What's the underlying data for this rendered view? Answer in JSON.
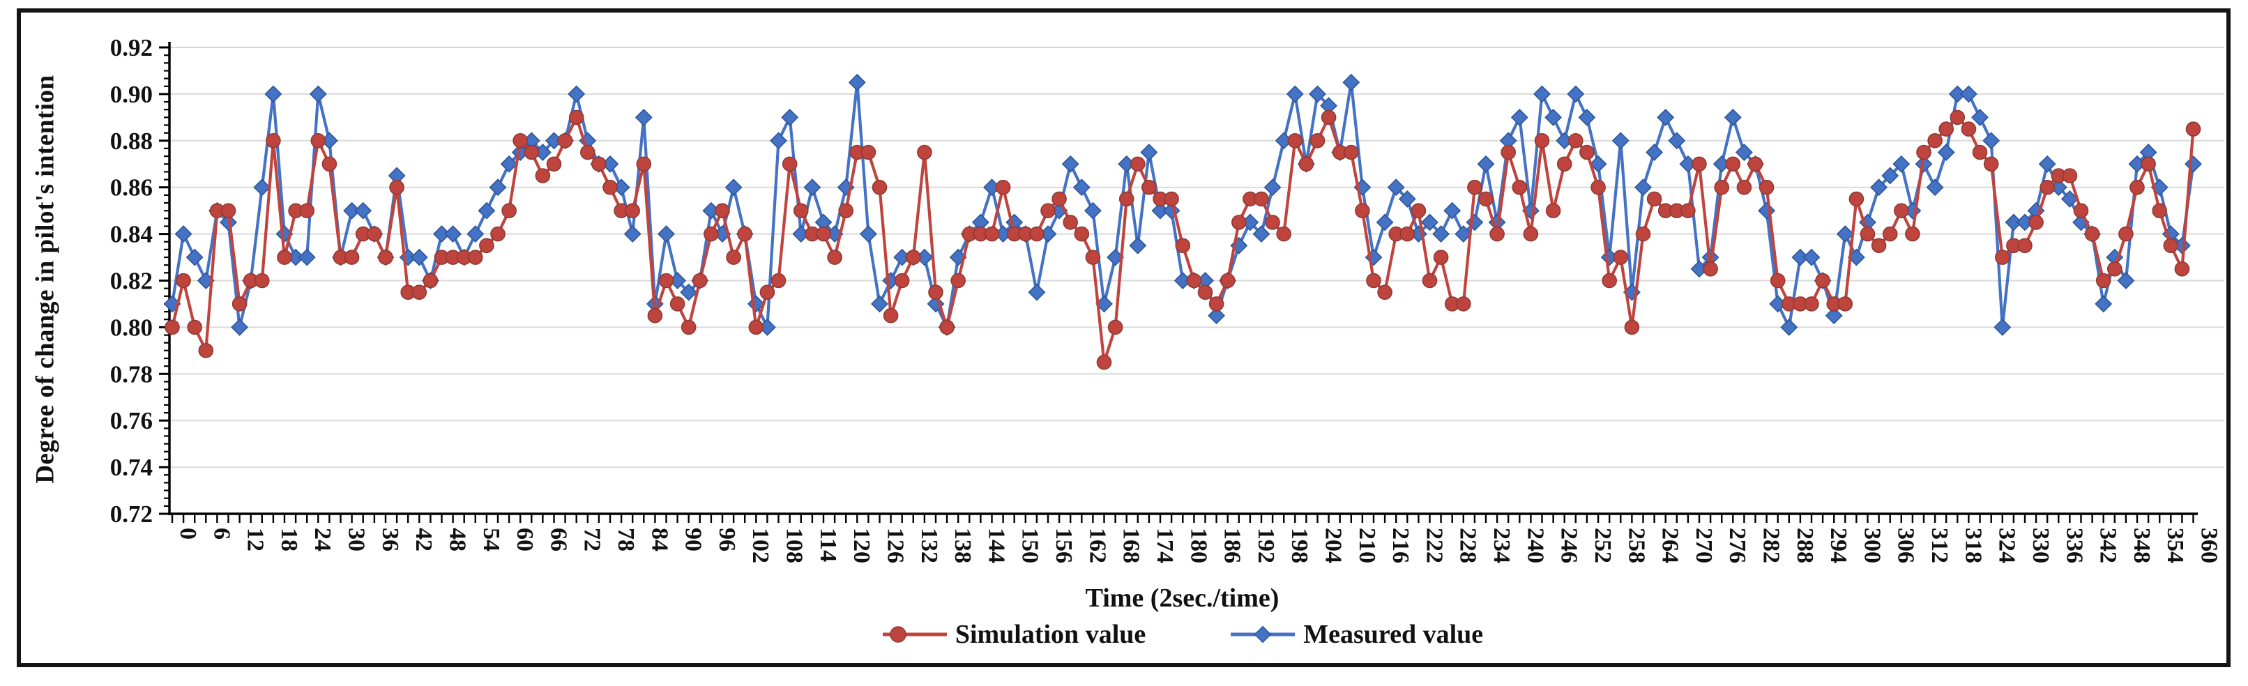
{
  "frame": {
    "border_color": "#141414"
  },
  "y_axis_title": "Degree of change  in pilot's intention",
  "x_axis_title": "Time (2sec./time)",
  "legend": {
    "items": [
      {
        "label": "Simulation value",
        "marker": "circle",
        "color": "#C0443E"
      },
      {
        "label": "Measured value",
        "marker": "diamond",
        "color": "#4472C4"
      }
    ]
  },
  "chart_data": {
    "type": "line",
    "title": "",
    "xlabel": "Time (2sec./time)",
    "ylabel": "Degree of change  in pilot's intention",
    "x_start": 0,
    "x_step": 2,
    "x_max": 360,
    "x_label_every": 6,
    "ylim": [
      0.72,
      0.92
    ],
    "ytick_step": 0.02,
    "y_minor_divisions": 6,
    "grid": true,
    "legend_position": "bottom",
    "colors": {
      "grid": "#D9D9D9",
      "axis": "#000000",
      "simulation_fill": "#C0443E",
      "simulation_edge": "#8E3A34",
      "measured_fill": "#4472C4",
      "measured_edge": "#2F5597"
    },
    "series": [
      {
        "name": "Measured value",
        "marker": "diamond",
        "values": [
          0.81,
          0.84,
          0.83,
          0.82,
          0.85,
          0.845,
          0.8,
          0.82,
          0.86,
          0.9,
          0.84,
          0.83,
          0.83,
          0.9,
          0.88,
          0.83,
          0.85,
          0.85,
          0.84,
          0.83,
          0.865,
          0.83,
          0.83,
          0.82,
          0.84,
          0.84,
          0.83,
          0.84,
          0.85,
          0.86,
          0.87,
          0.875,
          0.88,
          0.875,
          0.88,
          0.88,
          0.9,
          0.88,
          0.87,
          0.87,
          0.86,
          0.84,
          0.89,
          0.81,
          0.84,
          0.82,
          0.815,
          0.82,
          0.85,
          0.84,
          0.86,
          0.84,
          0.81,
          0.8,
          0.88,
          0.89,
          0.84,
          0.86,
          0.845,
          0.84,
          0.86,
          0.905,
          0.84,
          0.81,
          0.82,
          0.83,
          0.83,
          0.83,
          0.81,
          0.8,
          0.83,
          0.84,
          0.845,
          0.86,
          0.84,
          0.845,
          0.84,
          0.815,
          0.84,
          0.85,
          0.87,
          0.86,
          0.85,
          0.81,
          0.83,
          0.87,
          0.835,
          0.875,
          0.85,
          0.85,
          0.82,
          0.82,
          0.82,
          0.805,
          0.82,
          0.835,
          0.845,
          0.84,
          0.86,
          0.88,
          0.9,
          0.87,
          0.9,
          0.895,
          0.875,
          0.905,
          0.86,
          0.83,
          0.845,
          0.86,
          0.855,
          0.84,
          0.845,
          0.84,
          0.85,
          0.84,
          0.845,
          0.87,
          0.845,
          0.88,
          0.89,
          0.85,
          0.9,
          0.89,
          0.88,
          0.9,
          0.89,
          0.87,
          0.83,
          0.88,
          0.815,
          0.86,
          0.875,
          0.89,
          0.88,
          0.87,
          0.825,
          0.83,
          0.87,
          0.89,
          0.875,
          0.87,
          0.85,
          0.81,
          0.8,
          0.83,
          0.83,
          0.82,
          0.805,
          0.84,
          0.83,
          0.845,
          0.86,
          0.865,
          0.87,
          0.85,
          0.87,
          0.86,
          0.875,
          0.9,
          0.9,
          0.89,
          0.88,
          0.8,
          0.845,
          0.845,
          0.85,
          0.87,
          0.86,
          0.855,
          0.845,
          0.84,
          0.81,
          0.83,
          0.82,
          0.87,
          0.875,
          0.86,
          0.84,
          0.835,
          0.87
        ]
      },
      {
        "name": "Simulation value",
        "marker": "circle",
        "values": [
          0.8,
          0.82,
          0.8,
          0.79,
          0.85,
          0.85,
          0.81,
          0.82,
          0.82,
          0.88,
          0.83,
          0.85,
          0.85,
          0.88,
          0.87,
          0.83,
          0.83,
          0.84,
          0.84,
          0.83,
          0.86,
          0.815,
          0.815,
          0.82,
          0.83,
          0.83,
          0.83,
          0.83,
          0.835,
          0.84,
          0.85,
          0.88,
          0.875,
          0.865,
          0.87,
          0.88,
          0.89,
          0.875,
          0.87,
          0.86,
          0.85,
          0.85,
          0.87,
          0.805,
          0.82,
          0.81,
          0.8,
          0.82,
          0.84,
          0.85,
          0.83,
          0.84,
          0.8,
          0.815,
          0.82,
          0.87,
          0.85,
          0.84,
          0.84,
          0.83,
          0.85,
          0.875,
          0.875,
          0.86,
          0.805,
          0.82,
          0.83,
          0.875,
          0.815,
          0.8,
          0.82,
          0.84,
          0.84,
          0.84,
          0.86,
          0.84,
          0.84,
          0.84,
          0.85,
          0.855,
          0.845,
          0.84,
          0.83,
          0.785,
          0.8,
          0.855,
          0.87,
          0.86,
          0.855,
          0.855,
          0.835,
          0.82,
          0.815,
          0.81,
          0.82,
          0.845,
          0.855,
          0.855,
          0.845,
          0.84,
          0.88,
          0.87,
          0.88,
          0.89,
          0.875,
          0.875,
          0.85,
          0.82,
          0.815,
          0.84,
          0.84,
          0.85,
          0.82,
          0.83,
          0.81,
          0.81,
          0.86,
          0.855,
          0.84,
          0.875,
          0.86,
          0.84,
          0.88,
          0.85,
          0.87,
          0.88,
          0.875,
          0.86,
          0.82,
          0.83,
          0.8,
          0.84,
          0.855,
          0.85,
          0.85,
          0.85,
          0.87,
          0.825,
          0.86,
          0.87,
          0.86,
          0.87,
          0.86,
          0.82,
          0.81,
          0.81,
          0.81,
          0.82,
          0.81,
          0.81,
          0.855,
          0.84,
          0.835,
          0.84,
          0.85,
          0.84,
          0.875,
          0.88,
          0.885,
          0.89,
          0.885,
          0.875,
          0.87,
          0.83,
          0.835,
          0.835,
          0.845,
          0.86,
          0.865,
          0.865,
          0.85,
          0.84,
          0.82,
          0.825,
          0.84,
          0.86,
          0.87,
          0.85,
          0.835,
          0.825,
          0.885
        ]
      }
    ]
  }
}
